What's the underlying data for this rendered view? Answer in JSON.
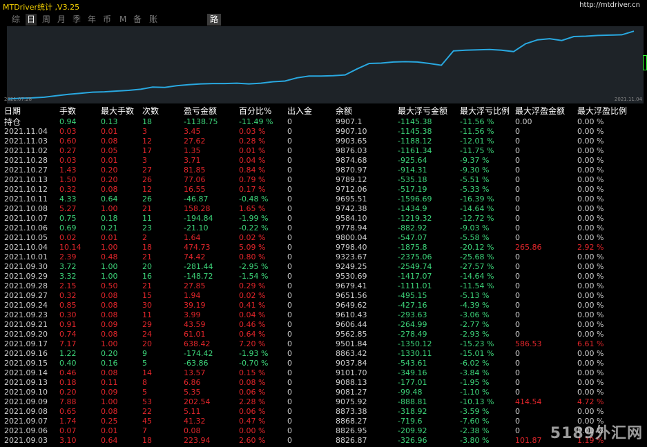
{
  "app": {
    "title": "MTDriver统计 ,V3.25",
    "url": "http://mtdriver.cn"
  },
  "tabs": [
    {
      "label": "综"
    },
    {
      "label": "日"
    },
    {
      "label": "周"
    },
    {
      "label": "月"
    },
    {
      "label": "季"
    },
    {
      "label": "年"
    },
    {
      "label": "币"
    },
    {
      "label": "M"
    },
    {
      "label": "备"
    },
    {
      "label": "账户"
    },
    {
      "label": "路径"
    }
  ],
  "chart": {
    "start_label": "2021.07.28",
    "end_label": "2021.11.04",
    "line_color": "#29a8e0"
  },
  "chart_data": {
    "type": "line",
    "title": "",
    "x_start": "2021.07.28",
    "x_end": "2021.11.04",
    "ylim": [
      8000,
      10000
    ],
    "values": [
      8010,
      8030,
      8040,
      8060,
      8100,
      8140,
      8170,
      8200,
      8210,
      8230,
      8250,
      8280,
      8340,
      8330,
      8380,
      8410,
      8430,
      8440,
      8440,
      8450,
      8430,
      8450,
      8490,
      8510,
      8600,
      8650,
      8650,
      8660,
      8680,
      8850,
      9000,
      9010,
      9040,
      9050,
      9040,
      9000,
      8950,
      9350,
      9370,
      9380,
      9390,
      9370,
      9330,
      9550,
      9660,
      9690,
      9640,
      9750,
      9760,
      9780,
      9790,
      9800,
      9900
    ]
  },
  "table": {
    "headers": [
      "日期",
      "手数",
      "最大手数",
      "次数",
      "盈亏金额",
      "百分比%",
      "出入金",
      "余额",
      "最大浮亏金额",
      "最大浮亏比例",
      "最大浮盈金额",
      "最大浮盈比例"
    ],
    "holding": [
      "持仓",
      "0.94",
      "0.13",
      "18",
      "-1138.75",
      "-11.49 %",
      "0",
      "9907.1",
      "-1145.38",
      "-11.56 %",
      "0.00",
      "0.00 %"
    ],
    "rows": [
      [
        "2021.11.04",
        "0.03",
        "0.01",
        "3",
        "3.45",
        "0.03 %",
        "0",
        "9907.10",
        "-1145.38",
        "-11.56 %",
        "0",
        "0.00 %"
      ],
      [
        "2021.11.03",
        "0.60",
        "0.08",
        "12",
        "27.62",
        "0.28 %",
        "0",
        "9903.65",
        "-1188.12",
        "-12.01 %",
        "0",
        "0.00 %"
      ],
      [
        "2021.11.02",
        "0.27",
        "0.05",
        "17",
        "1.35",
        "0.01 %",
        "0",
        "9876.03",
        "-1161.34",
        "-11.75 %",
        "0",
        "0.00 %"
      ],
      [
        "2021.10.28",
        "0.03",
        "0.01",
        "3",
        "3.71",
        "0.04 %",
        "0",
        "9874.68",
        "-925.64",
        "-9.37 %",
        "0",
        "0.00 %"
      ],
      [
        "2021.10.27",
        "1.43",
        "0.20",
        "27",
        "81.85",
        "0.84 %",
        "0",
        "9870.97",
        "-914.31",
        "-9.30 %",
        "0",
        "0.00 %"
      ],
      [
        "2021.10.13",
        "1.50",
        "0.20",
        "26",
        "77.06",
        "0.79 %",
        "0",
        "9789.12",
        "-535.18",
        "-5.51 %",
        "0",
        "0.00 %"
      ],
      [
        "2021.10.12",
        "0.32",
        "0.08",
        "12",
        "16.55",
        "0.17 %",
        "0",
        "9712.06",
        "-517.19",
        "-5.33 %",
        "0",
        "0.00 %"
      ],
      [
        "2021.10.11",
        "4.33",
        "0.64",
        "26",
        "-46.87",
        "-0.48 %",
        "0",
        "9695.51",
        "-1596.69",
        "-16.39 %",
        "0",
        "0.00 %"
      ],
      [
        "2021.10.08",
        "5.27",
        "1.00",
        "21",
        "158.28",
        "1.65 %",
        "0",
        "9742.38",
        "-1434.9",
        "-14.64 %",
        "0",
        "0.00 %"
      ],
      [
        "2021.10.07",
        "0.75",
        "0.18",
        "11",
        "-194.84",
        "-1.99 %",
        "0",
        "9584.10",
        "-1219.32",
        "-12.72 %",
        "0",
        "0.00 %"
      ],
      [
        "2021.10.06",
        "0.69",
        "0.21",
        "23",
        "-21.10",
        "-0.22 %",
        "0",
        "9778.94",
        "-882.92",
        "-9.03 %",
        "0",
        "0.00 %"
      ],
      [
        "2021.10.05",
        "0.02",
        "0.01",
        "2",
        "1.64",
        "0.02 %",
        "0",
        "9800.04",
        "-547.07",
        "-5.58 %",
        "0",
        "0.00 %"
      ],
      [
        "2021.10.04",
        "10.14",
        "1.00",
        "18",
        "474.73",
        "5.09 %",
        "0",
        "9798.40",
        "-1875.8",
        "-20.12 %",
        "265.86",
        "2.92 %"
      ],
      [
        "2021.10.01",
        "2.39",
        "0.48",
        "21",
        "74.42",
        "0.80 %",
        "0",
        "9323.67",
        "-2375.06",
        "-25.68 %",
        "0",
        "0.00 %"
      ],
      [
        "2021.09.30",
        "3.72",
        "1.00",
        "20",
        "-281.44",
        "-2.95 %",
        "0",
        "9249.25",
        "-2549.74",
        "-27.57 %",
        "0",
        "0.00 %"
      ],
      [
        "2021.09.29",
        "3.32",
        "1.00",
        "16",
        "-148.72",
        "-1.54 %",
        "0",
        "9530.69",
        "-1417.07",
        "-14.64 %",
        "0",
        "0.00 %"
      ],
      [
        "2021.09.28",
        "2.15",
        "0.50",
        "21",
        "27.85",
        "0.29 %",
        "0",
        "9679.41",
        "-1111.01",
        "-11.54 %",
        "0",
        "0.00 %"
      ],
      [
        "2021.09.27",
        "0.32",
        "0.08",
        "15",
        "1.94",
        "0.02 %",
        "0",
        "9651.56",
        "-495.15",
        "-5.13 %",
        "0",
        "0.00 %"
      ],
      [
        "2021.09.24",
        "0.85",
        "0.08",
        "30",
        "39.19",
        "0.41 %",
        "0",
        "9649.62",
        "-427.16",
        "-4.39 %",
        "0",
        "0.00 %"
      ],
      [
        "2021.09.23",
        "0.30",
        "0.08",
        "11",
        "3.99",
        "0.04 %",
        "0",
        "9610.43",
        "-293.63",
        "-3.06 %",
        "0",
        "0.00 %"
      ],
      [
        "2021.09.21",
        "0.91",
        "0.09",
        "29",
        "43.59",
        "0.46 %",
        "0",
        "9606.44",
        "-264.99",
        "-2.77 %",
        "0",
        "0.00 %"
      ],
      [
        "2021.09.20",
        "0.74",
        "0.08",
        "24",
        "61.01",
        "0.64 %",
        "0",
        "9562.85",
        "-278.49",
        "-2.93 %",
        "0",
        "0.00 %"
      ],
      [
        "2021.09.17",
        "7.17",
        "1.00",
        "20",
        "638.42",
        "7.20 %",
        "0",
        "9501.84",
        "-1350.12",
        "-15.23 %",
        "586.53",
        "6.61 %"
      ],
      [
        "2021.09.16",
        "1.22",
        "0.20",
        "9",
        "-174.42",
        "-1.93 %",
        "0",
        "8863.42",
        "-1330.11",
        "-15.01 %",
        "0",
        "0.00 %"
      ],
      [
        "2021.09.15",
        "0.40",
        "0.16",
        "5",
        "-63.86",
        "-0.70 %",
        "0",
        "9037.84",
        "-543.61",
        "-6.02 %",
        "0",
        "0.00 %"
      ],
      [
        "2021.09.14",
        "0.46",
        "0.08",
        "14",
        "13.57",
        "0.15 %",
        "0",
        "9101.70",
        "-349.16",
        "-3.84 %",
        "0",
        "0.00 %"
      ],
      [
        "2021.09.13",
        "0.18",
        "0.11",
        "8",
        "6.86",
        "0.08 %",
        "0",
        "9088.13",
        "-177.01",
        "-1.95 %",
        "0",
        "0.00 %"
      ],
      [
        "2021.09.10",
        "0.20",
        "0.09",
        "5",
        "5.35",
        "0.06 %",
        "0",
        "9081.27",
        "-99.48",
        "-1.10 %",
        "0",
        "0.00 %"
      ],
      [
        "2021.09.09",
        "7.88",
        "1.00",
        "53",
        "202.54",
        "2.28 %",
        "0",
        "9075.92",
        "-888.81",
        "-10.13 %",
        "414.54",
        "4.72 %"
      ],
      [
        "2021.09.08",
        "0.65",
        "0.08",
        "22",
        "5.11",
        "0.06 %",
        "0",
        "8873.38",
        "-318.92",
        "-3.59 %",
        "0",
        "0.00 %"
      ],
      [
        "2021.09.07",
        "1.74",
        "0.25",
        "45",
        "41.32",
        "0.47 %",
        "0",
        "8868.27",
        "-719.6",
        "-7.60 %",
        "0",
        "0.00 %"
      ],
      [
        "2021.09.06",
        "0.07",
        "0.01",
        "7",
        "0.08",
        "0.00 %",
        "0",
        "8826.95",
        "-209.92",
        "-2.38 %",
        "0",
        "0.00 %"
      ],
      [
        "2021.09.03",
        "3.10",
        "0.64",
        "18",
        "223.94",
        "2.60 %",
        "0",
        "8826.87",
        "-326.96",
        "-3.80 %",
        "101.87",
        "1.19 %"
      ]
    ]
  },
  "watermark": "5189外汇网"
}
